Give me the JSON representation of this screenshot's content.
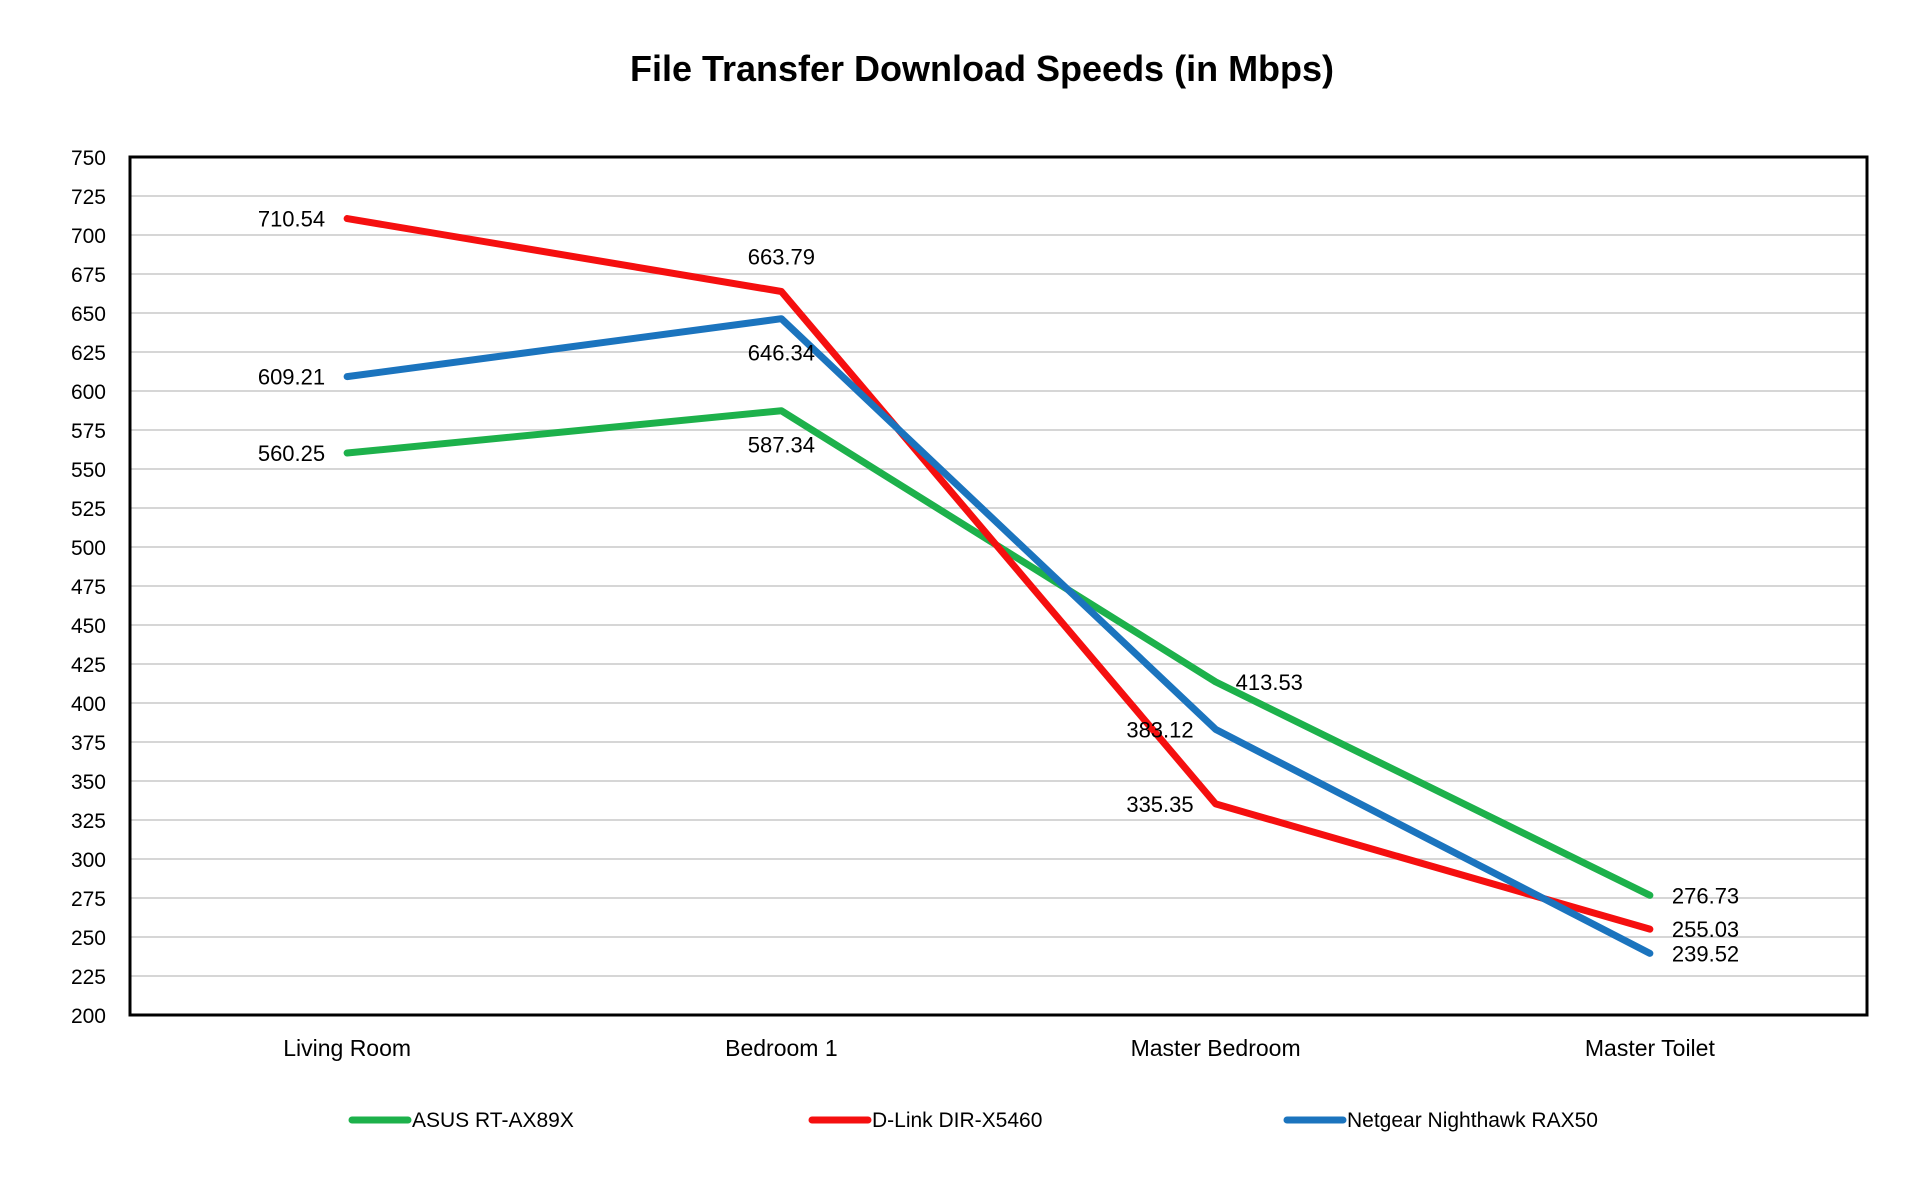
{
  "chart_data": {
    "type": "line",
    "title": "File Transfer Download Speeds (in Mbps)",
    "xlabel": "",
    "ylabel": "",
    "categories": [
      "Living Room",
      "Bedroom 1",
      "Master Bedroom",
      "Master Toilet"
    ],
    "ylim": [
      200,
      750
    ],
    "ytick_step": 25,
    "grid": true,
    "legend_position": "bottom",
    "series": [
      {
        "name": "ASUS RT-AX89X",
        "color": "#1DB14B",
        "values": [
          560.25,
          587.34,
          413.53,
          276.73
        ],
        "labels": [
          "560.25",
          "587.34",
          "413.53",
          "276.73"
        ]
      },
      {
        "name": "D-Link DIR-X5460",
        "color": "#F50F0F",
        "values": [
          710.54,
          663.79,
          335.35,
          255.03
        ],
        "labels": [
          "710.54",
          "663.79",
          "335.35",
          "255.03"
        ]
      },
      {
        "name": "Netgear Nighthawk RAX50",
        "color": "#1B74BE",
        "values": [
          609.21,
          646.34,
          383.12,
          239.52
        ],
        "labels": [
          "609.21",
          "646.34",
          "383.12",
          "239.52"
        ]
      }
    ]
  }
}
